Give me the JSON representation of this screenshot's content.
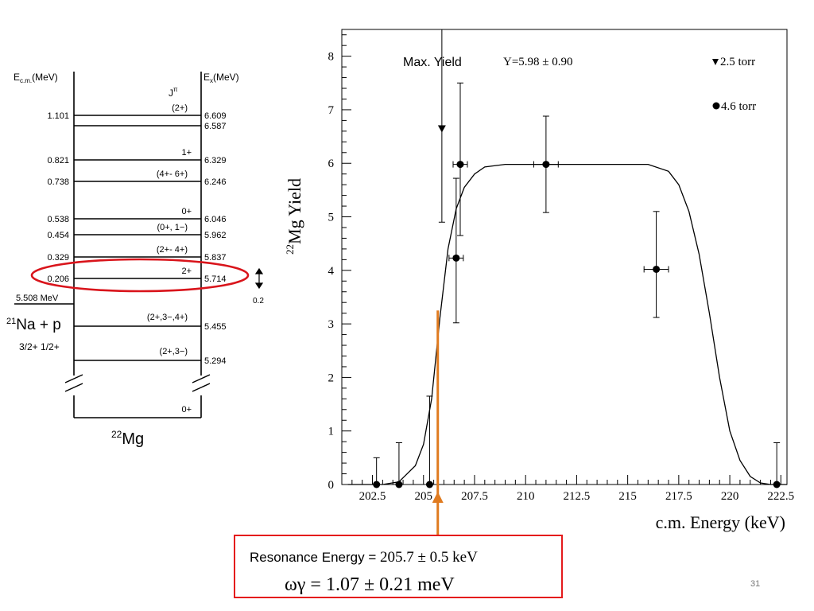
{
  "level_scheme": {
    "left_header": "E",
    "left_header_sub": "c.m.",
    "left_header_unit": "(MeV)",
    "right_header": "E",
    "right_header_sub": "x",
    "right_header_unit": "(MeV)",
    "jpi_j": "J",
    "jpi_pi": "π",
    "levels": [
      {
        "ecm": "1.101",
        "ex": "6.609",
        "spin": "(2+)"
      },
      {
        "ecm": "",
        "ex": "6.587",
        "spin": ""
      },
      {
        "ecm": "0.821",
        "ex": "6.329",
        "spin": "1+"
      },
      {
        "ecm": "0.738",
        "ex": "6.246",
        "spin": "(4+- 6+)"
      },
      {
        "ecm": "0.538",
        "ex": "6.046",
        "spin": "0+"
      },
      {
        "ecm": "0.454",
        "ex": "5.962",
        "spin": "(0+, 1−)"
      },
      {
        "ecm": "0.329",
        "ex": "5.837",
        "spin": "(2+- 4+)"
      },
      {
        "ecm": "0.206",
        "ex": "5.714",
        "spin": "2+"
      },
      {
        "ecm": "",
        "ex": "5.455",
        "spin": "(2+,3−,4+)"
      },
      {
        "ecm": "",
        "ex": "5.294",
        "spin": "(2+,3−)"
      },
      {
        "ecm": "",
        "ex": "",
        "spin": "0+"
      }
    ],
    "threshold": "5.508 MeV",
    "channel_mass": "21",
    "channel_label": "Na + p",
    "channel_spins": "3/2+  1/2+",
    "nucleus_mass": "22",
    "nucleus_label": "Mg",
    "arrow_value": "0.2",
    "highlight_color": "#d9141b"
  },
  "chart_data": {
    "type": "scatter",
    "xlabel": "c.m. Energy (keV)",
    "ylabel_mass": "22",
    "ylabel": "Mg Yield",
    "xlim": [
      201,
      222.8
    ],
    "ylim": [
      0,
      8.5
    ],
    "xticks": [
      202.5,
      205,
      207.5,
      210,
      212.5,
      215,
      217.5,
      220,
      222.5
    ],
    "yticks": [
      0,
      1,
      2,
      3,
      4,
      5,
      6,
      7,
      8
    ],
    "series": [
      {
        "name": "2.5 torr",
        "marker": "triangle-down",
        "points": [
          {
            "x": 205.9,
            "y": 6.65,
            "ylo": 4.9,
            "yhi": 8.5,
            "xerr": 0
          }
        ]
      },
      {
        "name": "4.6 torr",
        "marker": "circle",
        "points": [
          {
            "x": 202.7,
            "y": 0,
            "ylo": 0,
            "yhi": 0.5,
            "xerr": 0
          },
          {
            "x": 203.8,
            "y": 0,
            "ylo": 0,
            "yhi": 0.78,
            "xerr": 0
          },
          {
            "x": 205.3,
            "y": 0,
            "ylo": 0,
            "yhi": 1.65,
            "xerr": 0
          },
          {
            "x": 206.6,
            "y": 4.23,
            "ylo": 3.02,
            "yhi": 5.72,
            "xerr": 0.35
          },
          {
            "x": 206.8,
            "y": 5.98,
            "ylo": 4.65,
            "yhi": 7.5,
            "xerr": 0.35
          },
          {
            "x": 211.0,
            "y": 5.98,
            "ylo": 5.08,
            "yhi": 6.88,
            "xerr": 0.6
          },
          {
            "x": 216.4,
            "y": 4.02,
            "ylo": 3.12,
            "yhi": 5.1,
            "xerr": 0.6
          },
          {
            "x": 222.3,
            "y": 0,
            "ylo": 0,
            "yhi": 0.78,
            "xerr": 0
          }
        ]
      }
    ],
    "fit_curve": [
      [
        201.3,
        0
      ],
      [
        203.0,
        0
      ],
      [
        203.8,
        0.05
      ],
      [
        204.6,
        0.35
      ],
      [
        205.0,
        0.75
      ],
      [
        205.4,
        1.6
      ],
      [
        205.8,
        3.1
      ],
      [
        206.2,
        4.4
      ],
      [
        206.6,
        5.15
      ],
      [
        207.0,
        5.55
      ],
      [
        207.5,
        5.8
      ],
      [
        208.0,
        5.93
      ],
      [
        209.0,
        5.98
      ],
      [
        216.0,
        5.98
      ],
      [
        217.0,
        5.85
      ],
      [
        217.5,
        5.6
      ],
      [
        218.0,
        5.1
      ],
      [
        218.5,
        4.3
      ],
      [
        219.0,
        3.2
      ],
      [
        219.5,
        2.0
      ],
      [
        220.0,
        1.0
      ],
      [
        220.5,
        0.45
      ],
      [
        221.0,
        0.15
      ],
      [
        221.5,
        0.03
      ],
      [
        222.0,
        0
      ],
      [
        222.8,
        0
      ]
    ],
    "max_yield_label": "Max. Yield",
    "max_yield_value": "Y=5.98 ± 0.90",
    "resonance_x": 205.7,
    "resonance_y": 3.25,
    "resonance_color": "#e07b20"
  },
  "result_box": {
    "label": "Resonance Energy = ",
    "energy": "205.7 ± 0.5 keV",
    "strength": "ωγ = 1.07 ± 0.21 meV",
    "border_color": "#e41a1c"
  },
  "slide_number": "31"
}
